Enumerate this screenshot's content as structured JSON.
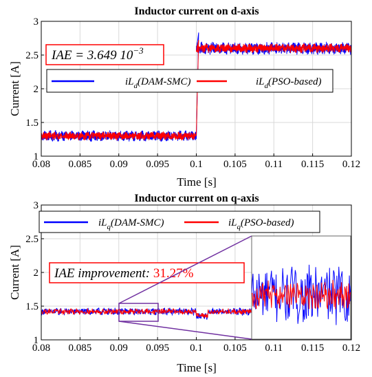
{
  "colors": {
    "dam_smc": "#0000ff",
    "pso": "#ff0000",
    "annotation_border": "#ff0000",
    "improvement_value": "#ff0000",
    "zoom": "#7030a0",
    "grid": "#d8d8d8"
  },
  "chart_data": [
    {
      "type": "line",
      "title": "Inductor current on d-axis",
      "xlabel": "Time [s]",
      "ylabel": "Current [A]",
      "xlim": [
        0.08,
        0.12
      ],
      "ylim": [
        1,
        3
      ],
      "xticks": [
        "0.08",
        "0.085",
        "0.09",
        "0.095",
        "0.1",
        "0.105",
        "0.11",
        "0.115",
        "0.12"
      ],
      "yticks": [
        "1",
        "1.5",
        "2",
        "2.5",
        "3"
      ],
      "grid": true,
      "legend_position": "upper-left",
      "annotation": {
        "prefix": "IAE = 3.649 10",
        "exponent": "−3"
      },
      "series": [
        {
          "name": "iL_d(DAM-SMC)",
          "sub": "d",
          "label_pre": "iL",
          "label_post": "(DAM-SMC)",
          "color": "#0000ff",
          "segments": [
            {
              "x": [
                0.08,
                0.1
              ],
              "mean": 1.3,
              "ripple": 0.065
            },
            {
              "x": [
                0.1,
                0.12
              ],
              "mean": 2.6,
              "ripple": 0.075
            }
          ],
          "overshoot": {
            "x": 0.1003,
            "y": 2.83
          }
        },
        {
          "name": "iL_d(PSO-based)",
          "sub": "d",
          "label_pre": "iL",
          "label_post": "(PSO-based)",
          "color": "#ff0000",
          "segments": [
            {
              "x": [
                0.08,
                0.1
              ],
              "mean": 1.3,
              "ripple": 0.05
            },
            {
              "x": [
                0.1,
                0.12
              ],
              "mean": 2.6,
              "ripple": 0.055
            }
          ],
          "overshoot": {
            "x": 0.1003,
            "y": 2.72
          }
        }
      ]
    },
    {
      "type": "line",
      "title": "Inductor current on q-axis",
      "xlabel": "Time [s]",
      "ylabel": "Current [A]",
      "xlim": [
        0.08,
        0.12
      ],
      "ylim": [
        1,
        3
      ],
      "xticks": [
        "0.08",
        "0.085",
        "0.09",
        "0.095",
        "0.1",
        "0.105",
        "0.11",
        "0.115",
        "0.12"
      ],
      "yticks": [
        "1",
        "1.5",
        "2",
        "2.5",
        "3"
      ],
      "grid": true,
      "legend_position": "top",
      "annotation": {
        "prefix": "IAE improvement: ",
        "value": "31.27%"
      },
      "zoom_window": {
        "x": [
          0.09,
          0.095
        ],
        "y": [
          1.3,
          1.58
        ]
      },
      "series": [
        {
          "name": "iL_q(DAM-SMC)",
          "sub": "q",
          "label_pre": "iL",
          "label_post": "(DAM-SMC)",
          "color": "#0000ff",
          "segments": [
            {
              "x": [
                0.08,
                0.12
              ],
              "mean": 1.42,
              "ripple": 0.045
            }
          ],
          "dip": {
            "x": [
              0.1,
              0.1015
            ],
            "y": 1.35
          }
        },
        {
          "name": "iL_q(PSO-based)",
          "sub": "q",
          "label_pre": "iL",
          "label_post": "(PSO-based)",
          "color": "#ff0000",
          "segments": [
            {
              "x": [
                0.08,
                0.12
              ],
              "mean": 1.42,
              "ripple": 0.035
            }
          ],
          "dip": {
            "x": [
              0.1,
              0.1015
            ],
            "y": 1.36
          }
        }
      ]
    }
  ]
}
